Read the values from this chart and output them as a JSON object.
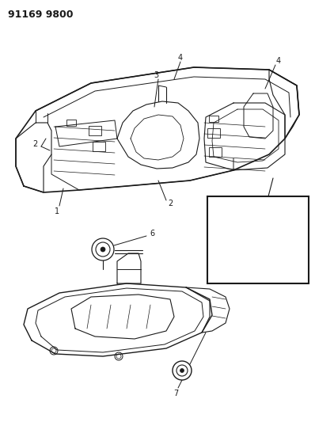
{
  "title": "91169 9800",
  "bg_color": "#ffffff",
  "line_color": "#1a1a1a",
  "figsize": [
    3.98,
    5.33
  ],
  "dpi": 100,
  "title_fontsize": 9,
  "label_fontsize": 7
}
